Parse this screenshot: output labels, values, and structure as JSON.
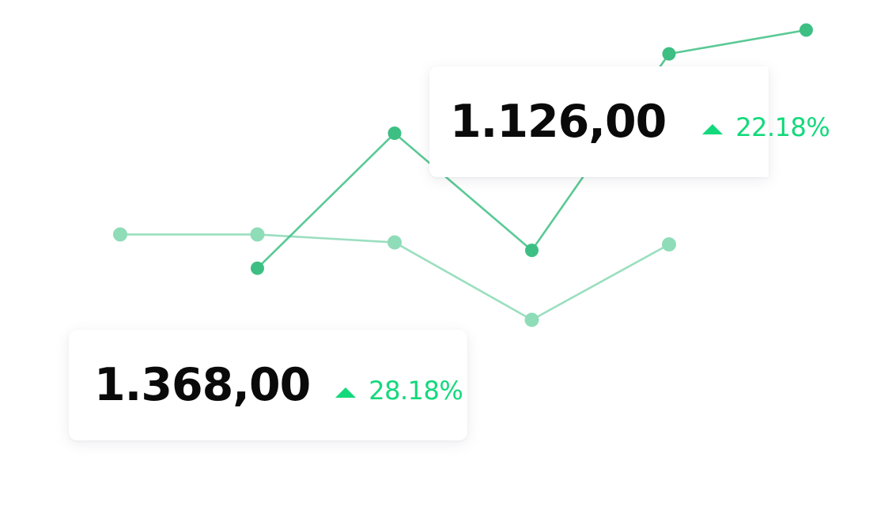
{
  "colors": {
    "series_primary": "#3dbf83",
    "series_secondary": "#8fdcb8",
    "positive": "#13d97c",
    "value_text": "#0a0a0a"
  },
  "chart_data": {
    "type": "line",
    "title": "",
    "xlabel": "",
    "ylabel": "",
    "grid": false,
    "legend": "none",
    "xlim": [
      0,
      10
    ],
    "ylim": [
      0,
      100
    ],
    "series": [
      {
        "role": "primary",
        "x": [
          1,
          2,
          3,
          4,
          5
        ],
        "values": [
          40,
          74,
          44.5,
          94,
          100
        ]
      },
      {
        "role": "secondary",
        "x": [
          0,
          1,
          2,
          3,
          4
        ],
        "values": [
          48.5,
          48.5,
          46.5,
          27,
          46
        ]
      }
    ]
  },
  "cards": {
    "a": {
      "value": "1.368,00",
      "delta": "28.18%"
    },
    "b": {
      "value": "1.126,00",
      "delta": "22.18%"
    }
  }
}
